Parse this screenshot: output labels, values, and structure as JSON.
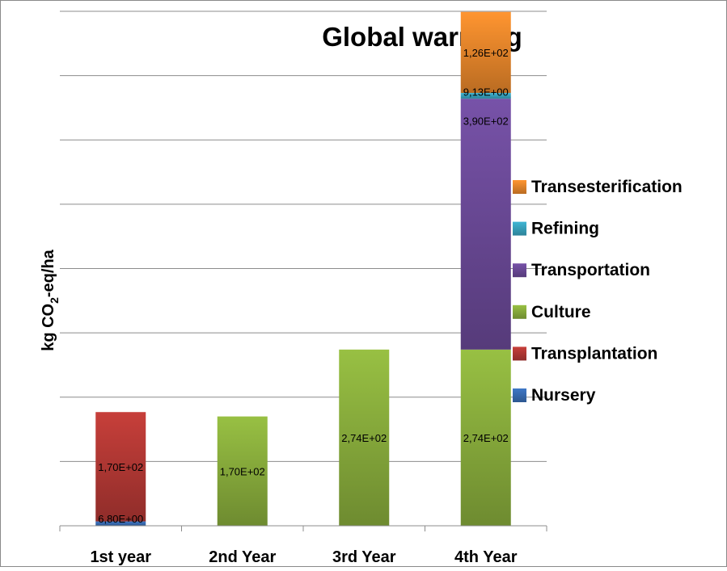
{
  "chart_data": {
    "type": "bar",
    "stacked": true,
    "title": "Global warming",
    "xlabel": "",
    "ylabel": "kg CO2-eq/ha",
    "categories": [
      "1st year",
      "2nd Year",
      "3rd Year",
      "4th Year"
    ],
    "ylim": [
      0,
      800
    ],
    "grid": true,
    "legend_position": "right",
    "series": [
      {
        "name": "Nursery",
        "color": "#3a6fb8",
        "values": [
          6.8,
          0,
          0,
          0
        ],
        "labels": [
          "6,80E+00",
          "",
          "",
          ""
        ]
      },
      {
        "name": "Transplantation",
        "color": "#b83a36",
        "values": [
          170,
          0,
          0,
          0
        ],
        "labels": [
          "1,70E+02",
          "",
          "",
          ""
        ]
      },
      {
        "name": "Culture",
        "color": "#8db23e",
        "values": [
          0,
          170,
          274,
          274
        ],
        "labels": [
          "",
          "1,70E+02",
          "2,74E+02",
          "2,74E+02"
        ]
      },
      {
        "name": "Transportation",
        "color": "#6e4c9c",
        "values": [
          0,
          0,
          0,
          390
        ],
        "labels": [
          "",
          "",
          "",
          "3,90E+02"
        ]
      },
      {
        "name": "Refining",
        "color": "#3aa8c4",
        "values": [
          0,
          0,
          0,
          9.13
        ],
        "labels": [
          "",
          "",
          "",
          "9,13E+00"
        ]
      },
      {
        "name": "Transesterification",
        "color": "#ee8a2c",
        "values": [
          0,
          0,
          0,
          126
        ],
        "labels": [
          "",
          "",
          "",
          "1,26E+02"
        ]
      }
    ]
  }
}
